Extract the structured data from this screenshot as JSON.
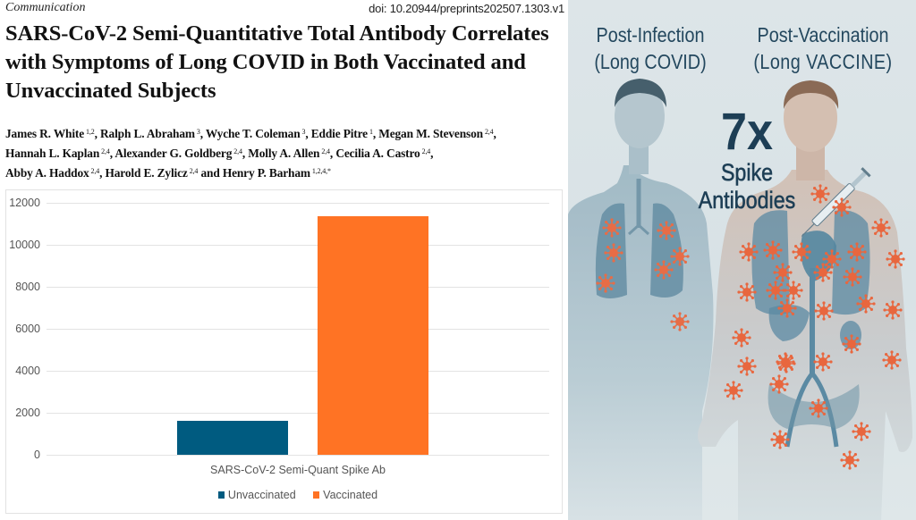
{
  "paper": {
    "doc_type": "Communication",
    "doi": "doi: 10.20944/preprints202507.1303.v1",
    "title": "SARS-CoV-2 Semi-Quantitative Total Antibody Correlates with Symptoms of Long COVID in Both Vaccinated and Unvaccinated Subjects",
    "authors": [
      {
        "name": "James R. White",
        "aff": "1,2"
      },
      {
        "name": "Ralph L. Abraham",
        "aff": "3"
      },
      {
        "name": "Wyche T. Coleman",
        "aff": "3"
      },
      {
        "name": "Eddie Pitre",
        "aff": "1"
      },
      {
        "name": "Megan M. Stevenson",
        "aff": "2,4"
      },
      {
        "name": "Hannah L. Kaplan",
        "aff": "2,4"
      },
      {
        "name": "Alexander G. Goldberg",
        "aff": "2,4"
      },
      {
        "name": "Molly A. Allen",
        "aff": "2,4"
      },
      {
        "name": "Cecilia A. Castro",
        "aff": "2,4"
      },
      {
        "name": "Abby A. Haddox",
        "aff": "2,4"
      },
      {
        "name": "Harold E. Zylicz",
        "aff": "2,4"
      },
      {
        "name": "Henry P. Barham",
        "aff": "1,2,4,*"
      }
    ]
  },
  "chart_data": {
    "type": "bar",
    "title": "",
    "categories": [
      "SARS-CoV-2 Semi-Quant Spike Ab"
    ],
    "series": [
      {
        "name": "Unvaccinated",
        "color": "#005b80",
        "values": [
          1620
        ]
      },
      {
        "name": "Vaccinated",
        "color": "#ff7324",
        "values": [
          11350
        ]
      }
    ],
    "xlabel": "SARS-CoV-2 Semi-Quant Spike Ab",
    "ylabel": "",
    "ylim": [
      0,
      12000
    ],
    "yticks": [
      0,
      2000,
      4000,
      6000,
      8000,
      10000,
      12000
    ],
    "grid": true,
    "legend_position": "bottom"
  },
  "illustration": {
    "left_label_line1": "Post-Infection",
    "left_label_line2": "(Long COVID)",
    "right_label_line1": "Post-Vaccination",
    "right_label_line2": "(Long VACCINE)",
    "callout_big": "7x",
    "callout_line1": "Spike",
    "callout_line2": "Antibodies",
    "colors": {
      "text": "#23475e",
      "virus": "#e8673f",
      "organ": "#5b8aa3",
      "skin": "#d7c6bb",
      "background": "#dde5e8"
    }
  }
}
